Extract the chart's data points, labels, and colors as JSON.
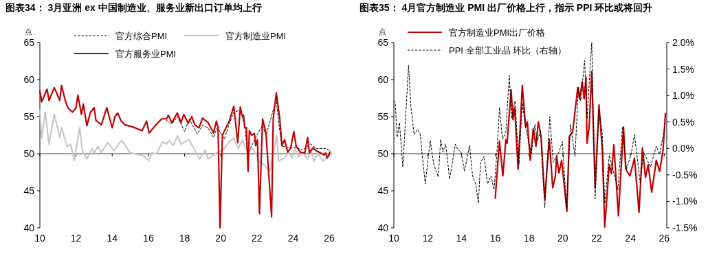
{
  "chart_data": [
    {
      "type": "line",
      "title": "图表34： 3月亚洲 ex 中国制造业、服务业新出口订单均上行",
      "ylabel": "点",
      "legend": "top",
      "xlim": [
        2010,
        2026.15
      ],
      "ylim": [
        40,
        65
      ],
      "xticks": [
        {
          "value": 2010,
          "label": "10"
        },
        {
          "value": 2012,
          "label": "12"
        },
        {
          "value": 2014,
          "label": "14"
        },
        {
          "value": 2016,
          "label": "16"
        },
        {
          "value": 2018,
          "label": "18"
        },
        {
          "value": 2020,
          "label": "20"
        },
        {
          "value": 2022,
          "label": "22"
        },
        {
          "value": 2024,
          "label": "24"
        },
        {
          "value": 2026,
          "label": "26"
        }
      ],
      "yticks": [
        40,
        45,
        50,
        55,
        60,
        65
      ],
      "ref_lines": [
        {
          "axis": "y",
          "value": 50,
          "color": "#404040"
        }
      ],
      "series": [
        {
          "name": "官方综合PMI",
          "color": "#000000",
          "line_style": "dashed",
          "x": [
            2017.0,
            2017.3,
            2017.6,
            2018.0,
            2018.25,
            2018.7,
            2019.0,
            2019.3,
            2019.6,
            2019.8,
            2020.2,
            2020.47,
            2020.72,
            2021.1,
            2021.33,
            2021.49,
            2021.7,
            2021.93,
            2022.31,
            2022.5,
            2023.07,
            2023.26,
            2023.38,
            2023.86,
            2024.1,
            2024.5,
            2024.96,
            2025.3,
            2025.79,
            2026.04
          ],
          "values": [
            54.5,
            54.0,
            55.0,
            53.0,
            54.7,
            52.7,
            53.8,
            53.5,
            52.2,
            53.5,
            52.0,
            54.0,
            55.6,
            55.9,
            53.6,
            49.9,
            51.0,
            52.2,
            53.8,
            52.5,
            57.3,
            53.1,
            51.0,
            50.8,
            50.9,
            50.5,
            51.3,
            50.7,
            50.7,
            50.4
          ]
        },
        {
          "name": "官方制造业PMI",
          "color": "#c8c8c8",
          "x": [
            2010.0,
            2010.1,
            2010.3,
            2010.5,
            2010.8,
            2011.1,
            2011.2,
            2011.5,
            2011.7,
            2011.9,
            2012.2,
            2012.35,
            2012.6,
            2012.9,
            2013.0,
            2013.2,
            2013.4,
            2013.75,
            2014.1,
            2014.5,
            2014.7,
            2015.0,
            2015.4,
            2015.65,
            2016.04,
            2016.2,
            2016.46,
            2016.77,
            2017.0,
            2017.15,
            2017.36,
            2017.62,
            2017.8,
            2018.25,
            2018.45,
            2018.82,
            2019.14,
            2019.3,
            2019.76,
            2020.2,
            2020.47,
            2020.72,
            2020.96,
            2021.2,
            2021.5,
            2021.75,
            2021.93,
            2022.1,
            2022.4,
            2022.7,
            2023.1,
            2023.2,
            2023.5,
            2023.77,
            2023.95,
            2024.1,
            2024.3,
            2024.55,
            2024.8,
            2025.0,
            2025.15,
            2025.35,
            2025.65,
            2025.95,
            2026.04
          ],
          "values": [
            55.9,
            52.1,
            55.6,
            51.3,
            55.3,
            52.2,
            53.5,
            51.0,
            51.3,
            49.1,
            53.5,
            50.4,
            49.3,
            50.7,
            50.1,
            51.0,
            50.2,
            51.5,
            50.4,
            51.8,
            51.2,
            50.1,
            49.9,
            49.8,
            49.1,
            50.1,
            50.0,
            51.6,
            51.3,
            51.8,
            51.1,
            52.4,
            51.3,
            51.9,
            51.0,
            49.3,
            50.5,
            49.3,
            50.1,
            50.7,
            51.6,
            52.1,
            50.7,
            51.9,
            50.1,
            50.7,
            50.1,
            49.0,
            48.5,
            47.6,
            52.5,
            49.0,
            49.4,
            50.2,
            49.4,
            50.7,
            49.6,
            50.1,
            49.3,
            50.4,
            49.0,
            50.1,
            49.0,
            49.8,
            50.4
          ]
        },
        {
          "name": "官方服务业PMI",
          "color": "#c00000",
          "x": [
            2010.0,
            2010.1,
            2010.4,
            2010.5,
            2010.8,
            2011.1,
            2011.2,
            2011.4,
            2011.55,
            2011.8,
            2012.0,
            2012.1,
            2012.3,
            2012.4,
            2012.6,
            2012.8,
            2013.0,
            2013.1,
            2013.4,
            2013.7,
            2014.0,
            2014.15,
            2014.3,
            2014.5,
            2014.7,
            2015.15,
            2015.65,
            2015.9,
            2016.04,
            2016.42,
            2016.73,
            2017.0,
            2017.1,
            2017.3,
            2017.6,
            2017.8,
            2017.96,
            2018.2,
            2018.4,
            2018.56,
            2018.8,
            2018.99,
            2019.3,
            2019.6,
            2019.76,
            2019.85,
            2019.96,
            2020.09,
            2020.47,
            2020.72,
            2020.94,
            2021.08,
            2021.17,
            2021.26,
            2021.33,
            2021.42,
            2021.51,
            2021.58,
            2021.71,
            2021.86,
            2021.93,
            2022.03,
            2022.14,
            2022.31,
            2022.5,
            2022.81,
            2022.9,
            2023.07,
            2023.26,
            2023.38,
            2023.53,
            2023.7,
            2023.86,
            2024.04,
            2024.17,
            2024.4,
            2024.65,
            2024.8,
            2024.9,
            2025.09,
            2025.28,
            2025.53,
            2025.7,
            2025.79,
            2025.89,
            2025.98,
            2026.04
          ],
          "values": [
            58.5,
            57.0,
            58.7,
            57.2,
            58.9,
            57.2,
            59.2,
            57.2,
            56.2,
            55.6,
            56.2,
            57.9,
            55.3,
            56.7,
            53.8,
            55.6,
            56.2,
            54.5,
            53.9,
            56.2,
            53.5,
            55.0,
            55.5,
            54.4,
            53.9,
            53.6,
            53.1,
            54.4,
            52.8,
            53.9,
            54.7,
            54.7,
            55.2,
            54.2,
            55.5,
            54.2,
            55.3,
            54.1,
            55.0,
            53.9,
            53.5,
            54.8,
            54.2,
            52.8,
            54.4,
            53.5,
            40.0,
            52.5,
            54.4,
            56.4,
            51.5,
            56.3,
            55.2,
            55.2,
            53.5,
            53.5,
            47.6,
            53.1,
            52.5,
            52.7,
            51.1,
            51.9,
            41.9,
            54.7,
            52.8,
            41.5,
            54.7,
            58.2,
            54.8,
            51.1,
            51.9,
            50.2,
            50.7,
            53.0,
            51.0,
            50.2,
            50.1,
            52.2,
            50.1,
            50.8,
            50.4,
            50.1,
            49.8,
            50.1,
            49.4,
            49.9,
            50.2
          ]
        }
      ]
    },
    {
      "type": "line",
      "title": "图表35： 4月官方制造业 PMI 出厂价格上行，指示 PPI 环比或将回升",
      "ylabel": "点",
      "legend": "top left",
      "xlim": [
        2010,
        2026.15
      ],
      "ylim": [
        40,
        65
      ],
      "y2lim": [
        -1.5,
        2.0
      ],
      "xticks": [
        {
          "value": 2010,
          "label": "10"
        },
        {
          "value": 2012,
          "label": "12"
        },
        {
          "value": 2014,
          "label": "14"
        },
        {
          "value": 2016,
          "label": "16"
        },
        {
          "value": 2018,
          "label": "18"
        },
        {
          "value": 2020,
          "label": "20"
        },
        {
          "value": 2022,
          "label": "22"
        },
        {
          "value": 2024,
          "label": "24"
        },
        {
          "value": 2026,
          "label": "26"
        }
      ],
      "yticks": [
        40,
        45,
        50,
        55,
        60,
        65
      ],
      "y2ticks": [
        {
          "value": -1.5,
          "label": "-1.5%"
        },
        {
          "value": -1.0,
          "label": "-1.0%"
        },
        {
          "value": -0.5,
          "label": "-0.5%"
        },
        {
          "value": 0,
          "label": "0.0%"
        },
        {
          "value": 0.5,
          "label": "0.5%"
        },
        {
          "value": 1.0,
          "label": "1.0%"
        },
        {
          "value": 1.5,
          "label": "1.5%"
        },
        {
          "value": 2.0,
          "label": "2.0%"
        }
      ],
      "ref_lines": [
        {
          "axis": "y",
          "value": 50,
          "color": "#404040"
        }
      ],
      "series": [
        {
          "name": "官方制造业PMI出厂价格",
          "color": "#c00000",
          "x": [
            2016.0,
            2016.25,
            2016.45,
            2016.63,
            2016.7,
            2016.94,
            2017.05,
            2017.15,
            2017.35,
            2017.6,
            2017.8,
            2017.9,
            2018.07,
            2018.25,
            2018.41,
            2018.55,
            2018.71,
            2018.93,
            2019.2,
            2019.4,
            2019.56,
            2019.63,
            2019.77,
            2019.93,
            2020.24,
            2020.38,
            2020.58,
            2020.88,
            2020.99,
            2021.15,
            2021.26,
            2021.37,
            2021.43,
            2021.56,
            2021.71,
            2021.91,
            2022.14,
            2022.34,
            2022.48,
            2022.75,
            2022.88,
            2023.02,
            2023.29,
            2023.59,
            2023.72,
            2023.97,
            2024.24,
            2024.51,
            2024.71,
            2024.89,
            2025.05,
            2025.26,
            2025.53,
            2025.73,
            2025.93,
            2026.07
          ],
          "values": [
            44.0,
            51.7,
            47.0,
            51.9,
            51.4,
            58.6,
            54.6,
            56.2,
            47.9,
            59.2,
            53.6,
            54.3,
            49.1,
            53.4,
            51.0,
            54.3,
            52.3,
            43.9,
            52.0,
            45.4,
            47.0,
            49.7,
            47.4,
            49.1,
            42.2,
            52.3,
            52.9,
            58.9,
            57.4,
            59.7,
            57.4,
            60.3,
            51.4,
            53.7,
            61.1,
            45.4,
            56.6,
            50.3,
            40.1,
            48.5,
            47.3,
            51.2,
            41.6,
            53.6,
            47.9,
            47.0,
            49.4,
            42.1,
            50.8,
            46.8,
            48.5,
            44.8,
            49.1,
            47.6,
            50.5,
            55.4
          ]
        },
        {
          "name": "PPI 全部工业品 环比（右轴）",
          "color": "#000000",
          "line_style": "dashed",
          "axis": "y2",
          "x": [
            2010.0,
            2010.08,
            2010.2,
            2010.33,
            2010.53,
            2010.87,
            2011.0,
            2011.2,
            2011.4,
            2011.55,
            2011.86,
            2012.15,
            2012.36,
            2012.63,
            2012.77,
            2012.9,
            2013.07,
            2013.3,
            2013.64,
            2013.78,
            2013.98,
            2014.18,
            2014.48,
            2014.66,
            2014.86,
            2015.0,
            2015.13,
            2015.34,
            2015.54,
            2015.75,
            2015.93,
            2016.09,
            2016.25,
            2016.43,
            2016.63,
            2016.83,
            2016.97,
            2017.17,
            2017.4,
            2017.6,
            2017.8,
            2018.14,
            2018.35,
            2018.48,
            2018.68,
            2018.93,
            2019.23,
            2019.43,
            2019.77,
            2019.97,
            2020.04,
            2020.22,
            2020.45,
            2020.72,
            2020.92,
            2021.06,
            2021.29,
            2021.43,
            2021.71,
            2021.91,
            2022.14,
            2022.34,
            2022.48,
            2022.75,
            2022.99,
            2023.26,
            2023.53,
            2023.77,
            2024.04,
            2024.24,
            2024.58,
            2024.78,
            2025.19,
            2025.53,
            2025.73,
            2026.07
          ],
          "values": [
            0.9,
            0.86,
            0.21,
            0.49,
            -0.35,
            1.57,
            0.82,
            0.26,
            0.36,
            0.28,
            -0.67,
            0.15,
            -0.3,
            -0.54,
            0.17,
            -0.07,
            0.08,
            -0.58,
            0.08,
            -0.02,
            -0.07,
            -0.43,
            0.06,
            -0.52,
            -0.69,
            -1.04,
            -0.26,
            -0.15,
            -0.67,
            -0.52,
            -0.78,
            -0.13,
            0.77,
            0.17,
            0.32,
            1.38,
            0.56,
            0.9,
            -0.3,
            0.86,
            0.38,
            -0.09,
            0.45,
            0.13,
            0.34,
            -1.12,
            0.6,
            -0.26,
            -0.07,
            0.13,
            -0.22,
            -1.12,
            0.45,
            -0.15,
            1.16,
            0.9,
            1.66,
            0.56,
            2.0,
            -0.95,
            0.73,
            0.26,
            -1.04,
            -0.13,
            -0.43,
            -0.78,
            0.41,
            -0.39,
            -0.11,
            0.26,
            -0.65,
            -0.07,
            -0.35,
            0.04,
            -0.11,
            0.47
          ]
        }
      ]
    }
  ]
}
